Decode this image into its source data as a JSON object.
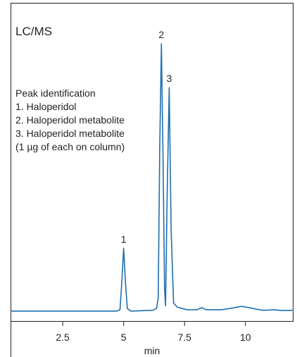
{
  "chart_data": {
    "type": "line",
    "title": "LC/MS",
    "legend_title": "Peak identification",
    "legend_items": [
      "1. Haloperidol",
      "2. Haloperidol metabolite",
      "3. Haloperidol metabolite",
      "(1 µg of each on column)"
    ],
    "peak_labels": [
      "1",
      "2",
      "3"
    ],
    "x_label": "min",
    "x": [
      0.36,
      4.7,
      4.85,
      4.92,
      5.0,
      5.08,
      5.15,
      5.3,
      6.2,
      6.35,
      6.42,
      6.48,
      6.55,
      6.62,
      6.68,
      6.72,
      6.78,
      6.87,
      6.95,
      7.05,
      7.2,
      7.6,
      8.0,
      8.2,
      8.4,
      9.0,
      9.5,
      9.84,
      10.2,
      10.7,
      11.2,
      11.5,
      11.97
    ],
    "series": [
      {
        "color": "#1f6fb0",
        "values": [
          0,
          0,
          0.5,
          10,
          23.5,
          10,
          1,
          0,
          0.3,
          1,
          5,
          60,
          100,
          55,
          8,
          2,
          40,
          83.6,
          30,
          3,
          1.5,
          0.5,
          0.5,
          1.3,
          0.5,
          0.5,
          1.2,
          1.8,
          1.2,
          0.3,
          0.5,
          0.2,
          0.3
        ]
      }
    ],
    "xlim": [
      0.36,
      11.97
    ],
    "xticks": [
      2.5,
      5,
      7.5,
      10
    ],
    "ylim": [
      -3.7,
      115.3
    ]
  }
}
